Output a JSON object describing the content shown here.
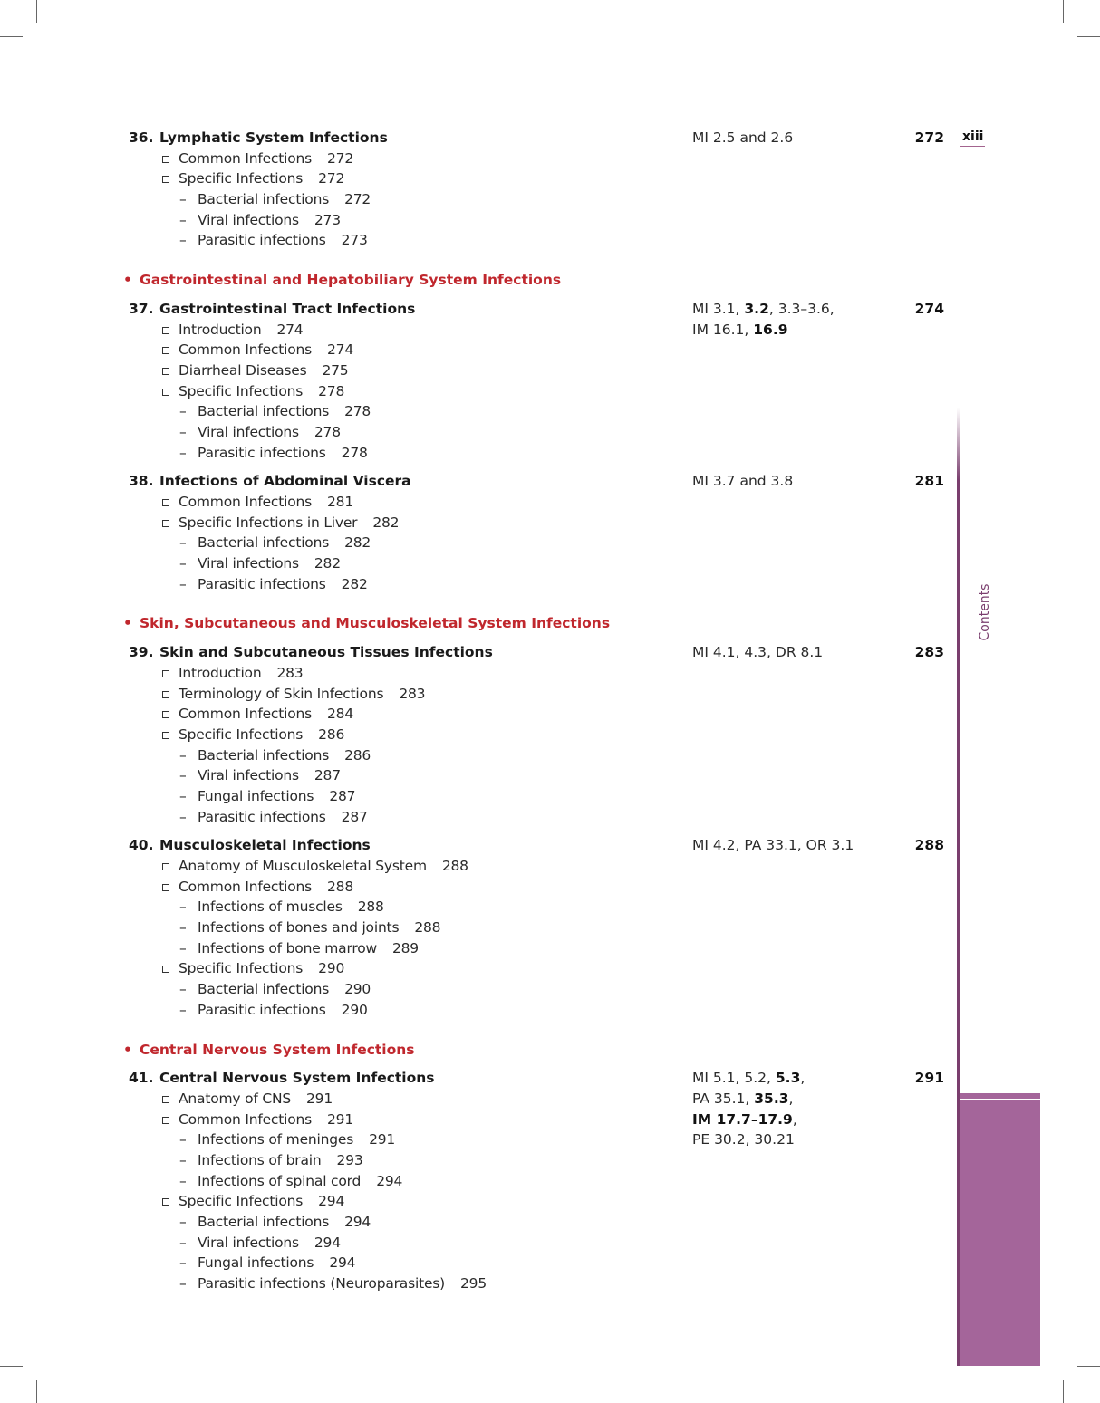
{
  "folio": "xiii",
  "side_tab": "Contents",
  "toc": [
    {
      "type": "chapter",
      "num": "36.",
      "title": "Lymphatic System Infections",
      "refs": [
        [
          "MI 2.5 and 2.6",
          false
        ]
      ],
      "page": "272",
      "items": [
        {
          "t": "i",
          "text": "Common Infections",
          "page": "272"
        },
        {
          "t": "i",
          "text": "Specific Infections",
          "page": "272"
        },
        {
          "t": "s",
          "text": "Bacterial infections",
          "page": "272"
        },
        {
          "t": "s",
          "text": "Viral infections",
          "page": "273"
        },
        {
          "t": "s",
          "text": "Parasitic infections",
          "page": "273"
        }
      ]
    },
    {
      "type": "section",
      "title": "Gastrointestinal and Hepatobiliary System Infections"
    },
    {
      "type": "chapter",
      "num": "37.",
      "title": "Gastrointestinal Tract Infections",
      "refs": [
        [
          "MI 3.1, ",
          false
        ],
        [
          "3.2",
          true
        ],
        [
          ", 3.3–3.6,\n",
          false
        ],
        [
          "IM 16.1, ",
          false
        ],
        [
          "16.9",
          true
        ]
      ],
      "page": "274",
      "items": [
        {
          "t": "i",
          "text": "Introduction",
          "page": "274"
        },
        {
          "t": "i",
          "text": "Common Infections",
          "page": "274"
        },
        {
          "t": "i",
          "text": "Diarrheal Diseases",
          "page": "275"
        },
        {
          "t": "i",
          "text": "Specific Infections",
          "page": "278"
        },
        {
          "t": "s",
          "text": "Bacterial infections",
          "page": "278"
        },
        {
          "t": "s",
          "text": "Viral infections",
          "page": "278"
        },
        {
          "t": "s",
          "text": "Parasitic infections",
          "page": "278"
        }
      ]
    },
    {
      "type": "chapter",
      "num": "38.",
      "title": "Infections of Abdominal Viscera",
      "refs": [
        [
          "MI 3.7 and 3.8",
          false
        ]
      ],
      "page": "281",
      "items": [
        {
          "t": "i",
          "text": "Common Infections",
          "page": "281"
        },
        {
          "t": "i",
          "text": "Specific Infections in Liver",
          "page": "282"
        },
        {
          "t": "s",
          "text": "Bacterial infections",
          "page": "282"
        },
        {
          "t": "s",
          "text": "Viral infections",
          "page": "282"
        },
        {
          "t": "s",
          "text": "Parasitic infections",
          "page": "282"
        }
      ]
    },
    {
      "type": "section",
      "title": "Skin, Subcutaneous and Musculoskeletal System Infections"
    },
    {
      "type": "chapter",
      "num": "39.",
      "title": "Skin and Subcutaneous Tissues Infections",
      "refs": [
        [
          "MI 4.1, 4.3, DR 8.1",
          false
        ]
      ],
      "page": "283",
      "items": [
        {
          "t": "i",
          "text": "Introduction",
          "page": "283"
        },
        {
          "t": "i",
          "text": "Terminology of Skin Infections",
          "page": "283"
        },
        {
          "t": "i",
          "text": "Common Infections",
          "page": "284"
        },
        {
          "t": "i",
          "text": "Specific Infections",
          "page": "286"
        },
        {
          "t": "s",
          "text": "Bacterial infections",
          "page": "286"
        },
        {
          "t": "s",
          "text": "Viral infections",
          "page": "287"
        },
        {
          "t": "s",
          "text": "Fungal infections",
          "page": "287"
        },
        {
          "t": "s",
          "text": "Parasitic infections",
          "page": "287"
        }
      ]
    },
    {
      "type": "chapter",
      "num": "40.",
      "title": "Musculoskeletal Infections",
      "refs": [
        [
          "MI 4.2, PA 33.1, OR 3.1",
          false
        ]
      ],
      "page": "288",
      "items": [
        {
          "t": "i",
          "text": "Anatomy of Musculoskeletal System",
          "page": "288"
        },
        {
          "t": "i",
          "text": "Common Infections",
          "page": "288"
        },
        {
          "t": "s",
          "text": "Infections of muscles",
          "page": "288"
        },
        {
          "t": "s",
          "text": "Infections of bones and joints",
          "page": "288"
        },
        {
          "t": "s",
          "text": "Infections of bone marrow",
          "page": "289"
        },
        {
          "t": "i",
          "text": "Specific Infections",
          "page": "290"
        },
        {
          "t": "s",
          "text": "Bacterial infections",
          "page": "290"
        },
        {
          "t": "s",
          "text": "Parasitic infections",
          "page": "290"
        }
      ]
    },
    {
      "type": "section",
      "title": "Central Nervous System Infections"
    },
    {
      "type": "chapter",
      "num": "41.",
      "title": "Central Nervous System Infections",
      "refs": [
        [
          "MI 5.1, 5.2, ",
          false
        ],
        [
          "5.3",
          true
        ],
        [
          ",\nPA 35.1, ",
          false
        ],
        [
          "35.3",
          true
        ],
        [
          ",\n",
          false
        ],
        [
          "IM 17.7–17.9",
          true
        ],
        [
          ",\nPE 30.2, 30.21",
          false
        ]
      ],
      "page": "291",
      "items": [
        {
          "t": "i",
          "text": "Anatomy of CNS",
          "page": "291"
        },
        {
          "t": "i",
          "text": "Common Infections",
          "page": "291"
        },
        {
          "t": "s",
          "text": "Infections of meninges",
          "page": "291"
        },
        {
          "t": "s",
          "text": "Infections of brain",
          "page": "293"
        },
        {
          "t": "s",
          "text": "Infections of spinal cord",
          "page": "294"
        },
        {
          "t": "i",
          "text": "Specific Infections",
          "page": "294"
        },
        {
          "t": "s",
          "text": "Bacterial infections",
          "page": "294"
        },
        {
          "t": "s",
          "text": "Viral infections",
          "page": "294"
        },
        {
          "t": "s",
          "text": "Fungal infections",
          "page": "294"
        },
        {
          "t": "s",
          "text": "Parasitic infections (Neuroparasites)",
          "page": "295"
        }
      ]
    }
  ]
}
